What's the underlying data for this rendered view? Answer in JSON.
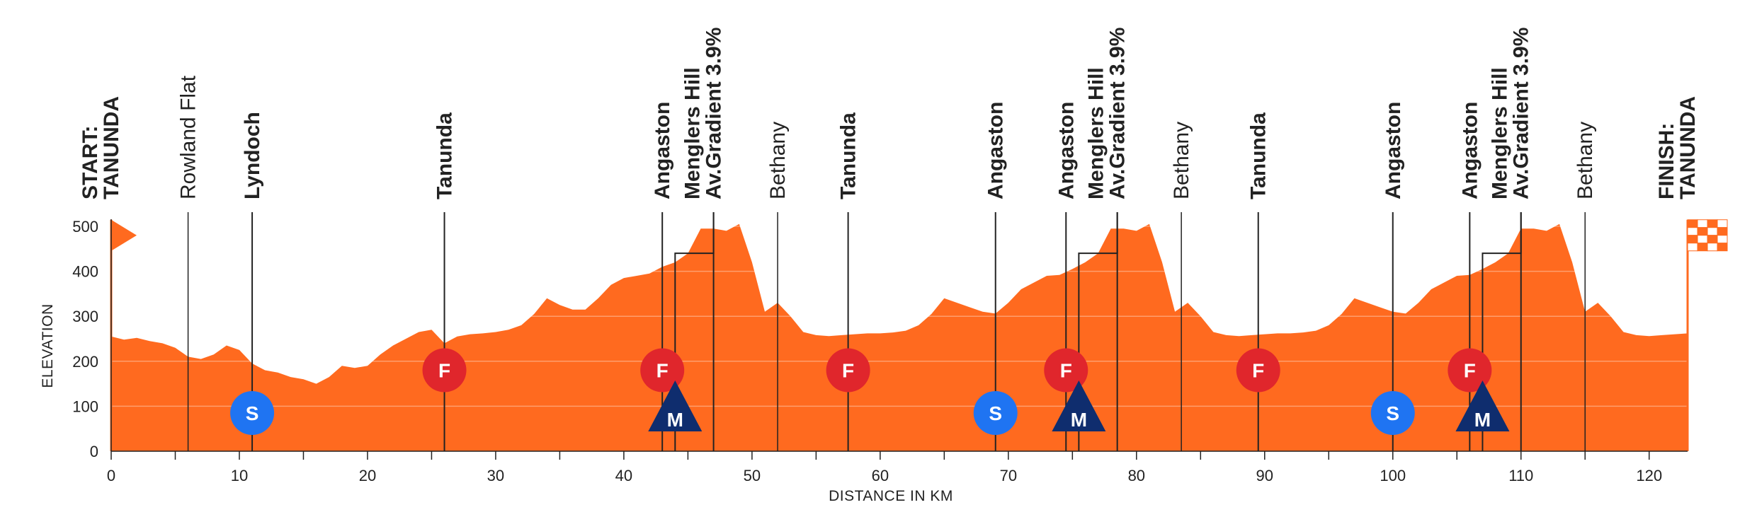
{
  "chart_data": {
    "type": "area",
    "title": "",
    "xlabel": "DISTANCE IN KM",
    "ylabel": "ELEVATION",
    "xlim": [
      0,
      123
    ],
    "ylim": [
      0,
      500
    ],
    "x_ticks": [
      0,
      10,
      20,
      30,
      40,
      50,
      60,
      70,
      80,
      90,
      100,
      110,
      120
    ],
    "y_ticks": [
      0,
      100,
      200,
      300,
      400,
      500
    ],
    "grid": true,
    "colors": {
      "fill": "#ff6a1f",
      "sprint": "#1f74f2",
      "feed": "#e0262c",
      "mountain": "#0f2d6e",
      "text": "#222222",
      "line": "#222222"
    },
    "profile": {
      "x": [
        0,
        1,
        2,
        3,
        4,
        5,
        6,
        7,
        8,
        9,
        10,
        11,
        12,
        13,
        14,
        15,
        16,
        17,
        18,
        19,
        20,
        21,
        22,
        23,
        24,
        25,
        26,
        27,
        28,
        29,
        30,
        31,
        32,
        33,
        34,
        35,
        36,
        37,
        38,
        39,
        40,
        41,
        42,
        43,
        44,
        45,
        46,
        47,
        48,
        49,
        50,
        51,
        52,
        53,
        54,
        55,
        56,
        57,
        58,
        59,
        60,
        61,
        62,
        63,
        64,
        65,
        66,
        67,
        68,
        69,
        70,
        71,
        72,
        73,
        74,
        75,
        76,
        77,
        78,
        79,
        80,
        81,
        82,
        83,
        84,
        85,
        86,
        87,
        88,
        89,
        90,
        91,
        92,
        93,
        94,
        95,
        96,
        97,
        98,
        99,
        100,
        101,
        102,
        103,
        104,
        105,
        106,
        107,
        108,
        109,
        110,
        111,
        112,
        113,
        114,
        115,
        116,
        117,
        118,
        119,
        120,
        121,
        122,
        123
      ],
      "elevation": [
        255,
        248,
        252,
        245,
        240,
        230,
        210,
        205,
        215,
        235,
        225,
        195,
        180,
        175,
        165,
        160,
        150,
        165,
        190,
        185,
        190,
        215,
        235,
        250,
        265,
        270,
        240,
        255,
        260,
        262,
        265,
        270,
        280,
        305,
        340,
        325,
        315,
        315,
        340,
        370,
        385,
        390,
        395,
        410,
        420,
        440,
        495,
        495,
        490,
        505,
        420,
        310,
        330,
        300,
        265,
        258,
        256,
        258,
        260,
        262,
        262,
        264,
        268,
        280,
        305,
        340,
        330,
        320,
        310,
        306,
        330,
        360,
        375,
        390,
        392,
        405,
        420,
        440,
        495,
        495,
        490,
        505,
        420,
        310,
        330,
        300,
        265,
        258,
        256,
        258,
        260,
        262,
        262,
        264,
        268,
        280,
        305,
        340,
        330,
        320,
        310,
        306,
        330,
        360,
        375,
        390,
        392,
        405,
        420,
        440,
        495,
        495,
        490,
        505,
        420,
        310,
        330,
        300,
        265,
        258,
        256,
        258,
        260,
        262
      ]
    },
    "locations": [
      {
        "km": 0,
        "lines": [
          "START:",
          "TANUNDA"
        ],
        "bold": true
      },
      {
        "km": 6,
        "lines": [
          "Rowland Flat"
        ],
        "bold": false
      },
      {
        "km": 11,
        "lines": [
          "Lyndoch"
        ],
        "bold": true
      },
      {
        "km": 26,
        "lines": [
          "Tanunda"
        ],
        "bold": true
      },
      {
        "km": 43,
        "lines": [
          "Angaston"
        ],
        "bold": true
      },
      {
        "km": 47,
        "lines": [
          "Menglers Hill",
          "Av.Gradient 3.9%"
        ],
        "bold": true
      },
      {
        "km": 52,
        "lines": [
          "Bethany"
        ],
        "bold": false
      },
      {
        "km": 57.5,
        "lines": [
          "Tanunda"
        ],
        "bold": true
      },
      {
        "km": 69,
        "lines": [
          "Angaston"
        ],
        "bold": true
      },
      {
        "km": 74.5,
        "lines": [
          "Angaston"
        ],
        "bold": true
      },
      {
        "km": 78.5,
        "lines": [
          "Menglers Hill",
          "Av.Gradient 3.9%"
        ],
        "bold": true
      },
      {
        "km": 83.5,
        "lines": [
          "Bethany"
        ],
        "bold": false
      },
      {
        "km": 89.5,
        "lines": [
          "Tanunda"
        ],
        "bold": true
      },
      {
        "km": 100,
        "lines": [
          "Angaston"
        ],
        "bold": true
      },
      {
        "km": 106,
        "lines": [
          "Angaston"
        ],
        "bold": true
      },
      {
        "km": 110,
        "lines": [
          "Menglers Hill",
          "Av.Gradient 3.9%"
        ],
        "bold": true
      },
      {
        "km": 115,
        "lines": [
          "Bethany"
        ],
        "bold": false
      },
      {
        "km": 123,
        "lines": [
          "FINISH:",
          "TANUNDA"
        ],
        "bold": true
      }
    ],
    "markers": [
      {
        "type": "sprint",
        "letter": "S",
        "km": 11,
        "elevation": 85
      },
      {
        "type": "feed",
        "letter": "F",
        "km": 26,
        "elevation": 180
      },
      {
        "type": "feed",
        "letter": "F",
        "km": 43,
        "elevation": 180
      },
      {
        "type": "mountain",
        "letter": "M",
        "km": 44,
        "elevation": 85
      },
      {
        "type": "feed",
        "letter": "F",
        "km": 57.5,
        "elevation": 180
      },
      {
        "type": "sprint",
        "letter": "S",
        "km": 69,
        "elevation": 85
      },
      {
        "type": "feed",
        "letter": "F",
        "km": 74.5,
        "elevation": 180
      },
      {
        "type": "mountain",
        "letter": "M",
        "km": 75.5,
        "elevation": 85
      },
      {
        "type": "feed",
        "letter": "F",
        "km": 89.5,
        "elevation": 180
      },
      {
        "type": "sprint",
        "letter": "S",
        "km": 100,
        "elevation": 85
      },
      {
        "type": "feed",
        "letter": "F",
        "km": 106,
        "elevation": 180
      },
      {
        "type": "mountain",
        "letter": "M",
        "km": 107,
        "elevation": 85
      }
    ],
    "climb_brackets": [
      {
        "start_km": 44,
        "end_km": 47
      },
      {
        "start_km": 75.5,
        "end_km": 78.5
      },
      {
        "start_km": 107,
        "end_km": 110
      }
    ],
    "start_flag": {
      "km": 0,
      "elevation": 480
    },
    "finish_flag": {
      "km": 123,
      "elevation": 480
    }
  }
}
